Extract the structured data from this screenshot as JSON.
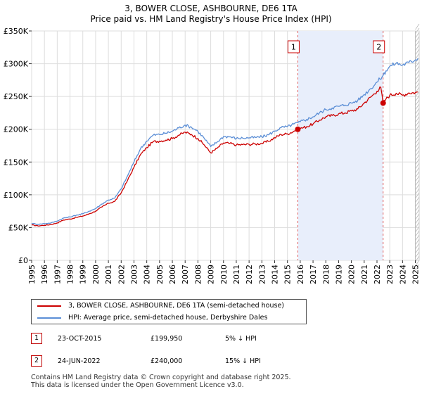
{
  "chart_data": {
    "type": "line",
    "title": "3, BOWER CLOSE, ASHBOURNE, DE6 1TA",
    "subtitle": "Price paid vs. HM Land Registry's House Price Index (HPI)",
    "y_ticks": [
      {
        "value": 0,
        "label": "£0"
      },
      {
        "value": 50000,
        "label": "£50K"
      },
      {
        "value": 100000,
        "label": "£100K"
      },
      {
        "value": 150000,
        "label": "£150K"
      },
      {
        "value": 200000,
        "label": "£200K"
      },
      {
        "value": 250000,
        "label": "£250K"
      },
      {
        "value": 300000,
        "label": "£300K"
      },
      {
        "value": 350000,
        "label": "£350K"
      }
    ],
    "x_ticks": [
      "1995",
      "1996",
      "1997",
      "1998",
      "1999",
      "2000",
      "2001",
      "2002",
      "2003",
      "2004",
      "2005",
      "2006",
      "2007",
      "2008",
      "2009",
      "2010",
      "2011",
      "2012",
      "2013",
      "2014",
      "2015",
      "2016",
      "2017",
      "2018",
      "2019",
      "2020",
      "2021",
      "2022",
      "2023",
      "2024",
      "2025"
    ],
    "xlim": [
      1995,
      2025.3
    ],
    "ylim": [
      0,
      350000
    ],
    "grid": true,
    "sales": [
      {
        "label": "1",
        "x": 2015.81,
        "price": 199950
      },
      {
        "label": "2",
        "x": 2022.48,
        "price": 240000
      }
    ],
    "shaded_period": [
      2015.81,
      2022.48
    ],
    "hatched_from": 2025.0,
    "series": [
      {
        "name": "3, BOWER CLOSE, ASHBOURNE, DE6 1TA (semi-detached house)",
        "color": "#cc0000",
        "x": [
          1995.0,
          1995.5,
          1996.0,
          1996.5,
          1997.0,
          1997.5,
          1998.0,
          1998.5,
          1999.0,
          1999.5,
          2000.0,
          2000.5,
          2001.0,
          2001.5,
          2002.0,
          2002.5,
          2003.0,
          2003.5,
          2004.0,
          2004.5,
          2005.0,
          2005.5,
          2006.0,
          2006.5,
          2007.0,
          2007.5,
          2008.0,
          2008.5,
          2009.0,
          2009.5,
          2010.0,
          2010.5,
          2011.0,
          2011.5,
          2012.0,
          2012.5,
          2013.0,
          2013.5,
          2014.0,
          2014.5,
          2015.0,
          2015.5,
          2015.81,
          2016.0,
          2016.5,
          2017.0,
          2017.5,
          2018.0,
          2018.5,
          2019.0,
          2019.5,
          2020.0,
          2020.5,
          2021.0,
          2021.5,
          2022.0,
          2022.3,
          2022.48,
          2022.7,
          2023.0,
          2023.5,
          2024.0,
          2024.5,
          2025.0,
          2025.2
        ],
        "values": [
          54000,
          52500,
          53500,
          54500,
          57000,
          61500,
          63000,
          65500,
          67500,
          71000,
          75000,
          81500,
          87000,
          90000,
          103000,
          122000,
          142000,
          161000,
          172000,
          181000,
          182000,
          183500,
          186000,
          191000,
          195500,
          192000,
          186000,
          176000,
          164000,
          171000,
          179000,
          178500,
          176000,
          176500,
          177000,
          177500,
          178500,
          181500,
          187000,
          192000,
          193000,
          197000,
          199950,
          201000,
          204000,
          208000,
          214000,
          219000,
          221000,
          223500,
          225000,
          228000,
          231000,
          240000,
          249000,
          258000,
          264000,
          240000,
          246000,
          252000,
          255000,
          252000,
          255500,
          256000,
          257000
        ]
      },
      {
        "name": "HPI: Average price, semi-detached house, Derbyshire Dales",
        "color": "#5b8ed6",
        "x": [
          1995.0,
          1995.5,
          1996.0,
          1996.5,
          1997.0,
          1997.5,
          1998.0,
          1998.5,
          1999.0,
          1999.5,
          2000.0,
          2000.5,
          2001.0,
          2001.5,
          2002.0,
          2002.5,
          2003.0,
          2003.5,
          2004.0,
          2004.5,
          2005.0,
          2005.5,
          2006.0,
          2006.5,
          2007.0,
          2007.5,
          2008.0,
          2008.5,
          2009.0,
          2009.5,
          2010.0,
          2010.5,
          2011.0,
          2011.5,
          2012.0,
          2012.5,
          2013.0,
          2013.5,
          2014.0,
          2014.5,
          2015.0,
          2015.5,
          2015.81,
          2016.0,
          2016.5,
          2017.0,
          2017.5,
          2018.0,
          2018.5,
          2019.0,
          2019.5,
          2020.0,
          2020.5,
          2021.0,
          2021.5,
          2022.0,
          2022.48,
          2022.7,
          2023.0,
          2023.5,
          2024.0,
          2024.5,
          2025.0,
          2025.2
        ],
        "values": [
          56500,
          55000,
          56000,
          57000,
          60000,
          64500,
          66000,
          69000,
          71000,
          75000,
          79000,
          86000,
          92000,
          95000,
          109000,
          129000,
          150000,
          170000,
          182000,
          191000,
          192000,
          194000,
          197000,
          202000,
          206500,
          203000,
          197000,
          186000,
          173500,
          180500,
          189000,
          188500,
          186000,
          186500,
          187000,
          187500,
          188500,
          191500,
          197000,
          202500,
          204000,
          208000,
          210000,
          211500,
          215000,
          219000,
          225000,
          230000,
          232500,
          235000,
          237000,
          240000,
          244000,
          253000,
          262000,
          272000,
          282000,
          289000,
          296000,
          301000,
          298000,
          302000,
          306000,
          308000
        ]
      }
    ],
    "legend_labels": [
      "3, BOWER CLOSE, ASHBOURNE, DE6 1TA (semi-detached house)",
      "HPI: Average price, semi-detached house, Derbyshire Dales"
    ]
  },
  "table": [
    {
      "id": "1",
      "date": "23-OCT-2015",
      "price": "£199,950",
      "hpi": "5% ↓ HPI"
    },
    {
      "id": "2",
      "date": "24-JUN-2022",
      "price": "£240,000",
      "hpi": "15% ↓ HPI"
    }
  ],
  "footer": {
    "line1": "Contains HM Land Registry data © Crown copyright and database right 2025.",
    "line2": "This data is licensed under the Open Government Licence v3.0."
  },
  "colors": {
    "red": "#cc0000",
    "blue": "#5b8ed6",
    "shade": "#e8eefb",
    "grid": "#dddddd",
    "vline": "#e06060"
  }
}
